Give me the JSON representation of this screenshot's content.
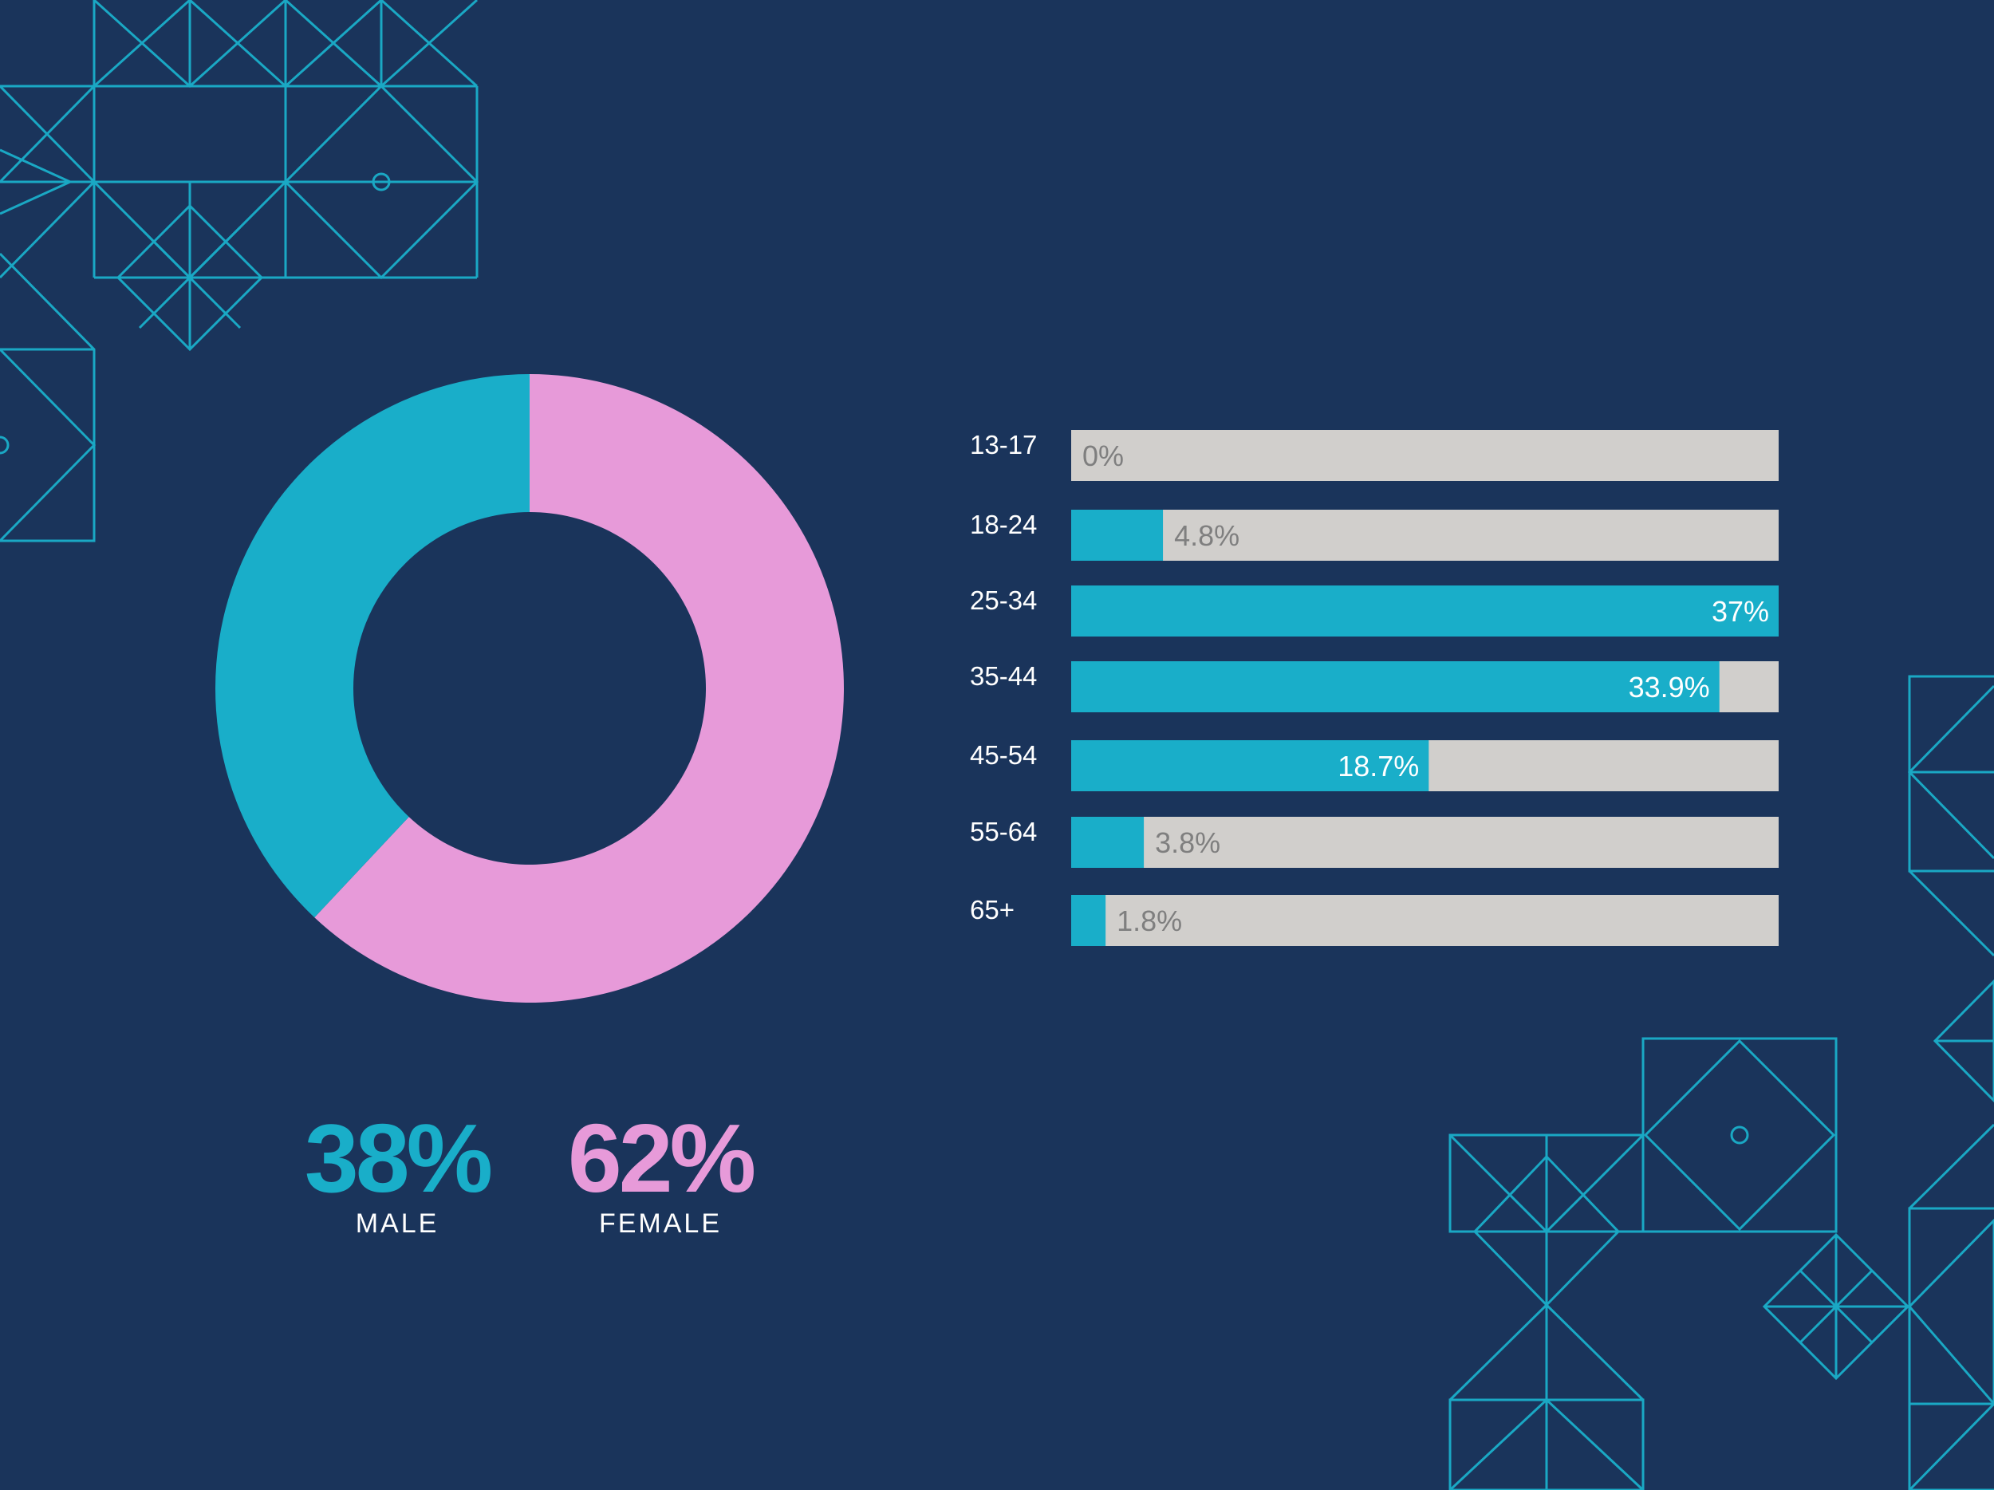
{
  "colors": {
    "background": "#1a345b",
    "male": "#19aec9",
    "female": "#e79ad9",
    "bar_fill": "#19aec9",
    "bar_track": "#d1cfcc",
    "value_on_fill": "#ffffff",
    "value_on_track": "#7f7f7f",
    "decoration": "#1aa8c4"
  },
  "chart_data": [
    {
      "type": "pie",
      "variant": "donut",
      "labels": [
        "MALE",
        "FEMALE"
      ],
      "values": [
        38,
        62
      ],
      "display": [
        "38%",
        "62%"
      ],
      "colors": [
        "#19aec9",
        "#e79ad9"
      ]
    },
    {
      "type": "bar",
      "orientation": "horizontal",
      "categories": [
        "13-17",
        "18-24",
        "25-34",
        "35-44",
        "45-54",
        "55-64",
        "65+"
      ],
      "values": [
        0,
        4.8,
        37,
        33.9,
        18.7,
        3.8,
        1.8
      ],
      "value_labels": [
        "0%",
        "4.8%",
        "37%",
        "33.9%",
        "18.7%",
        "3.8%",
        "1.8%"
      ],
      "xlim": [
        0,
        37
      ]
    }
  ]
}
